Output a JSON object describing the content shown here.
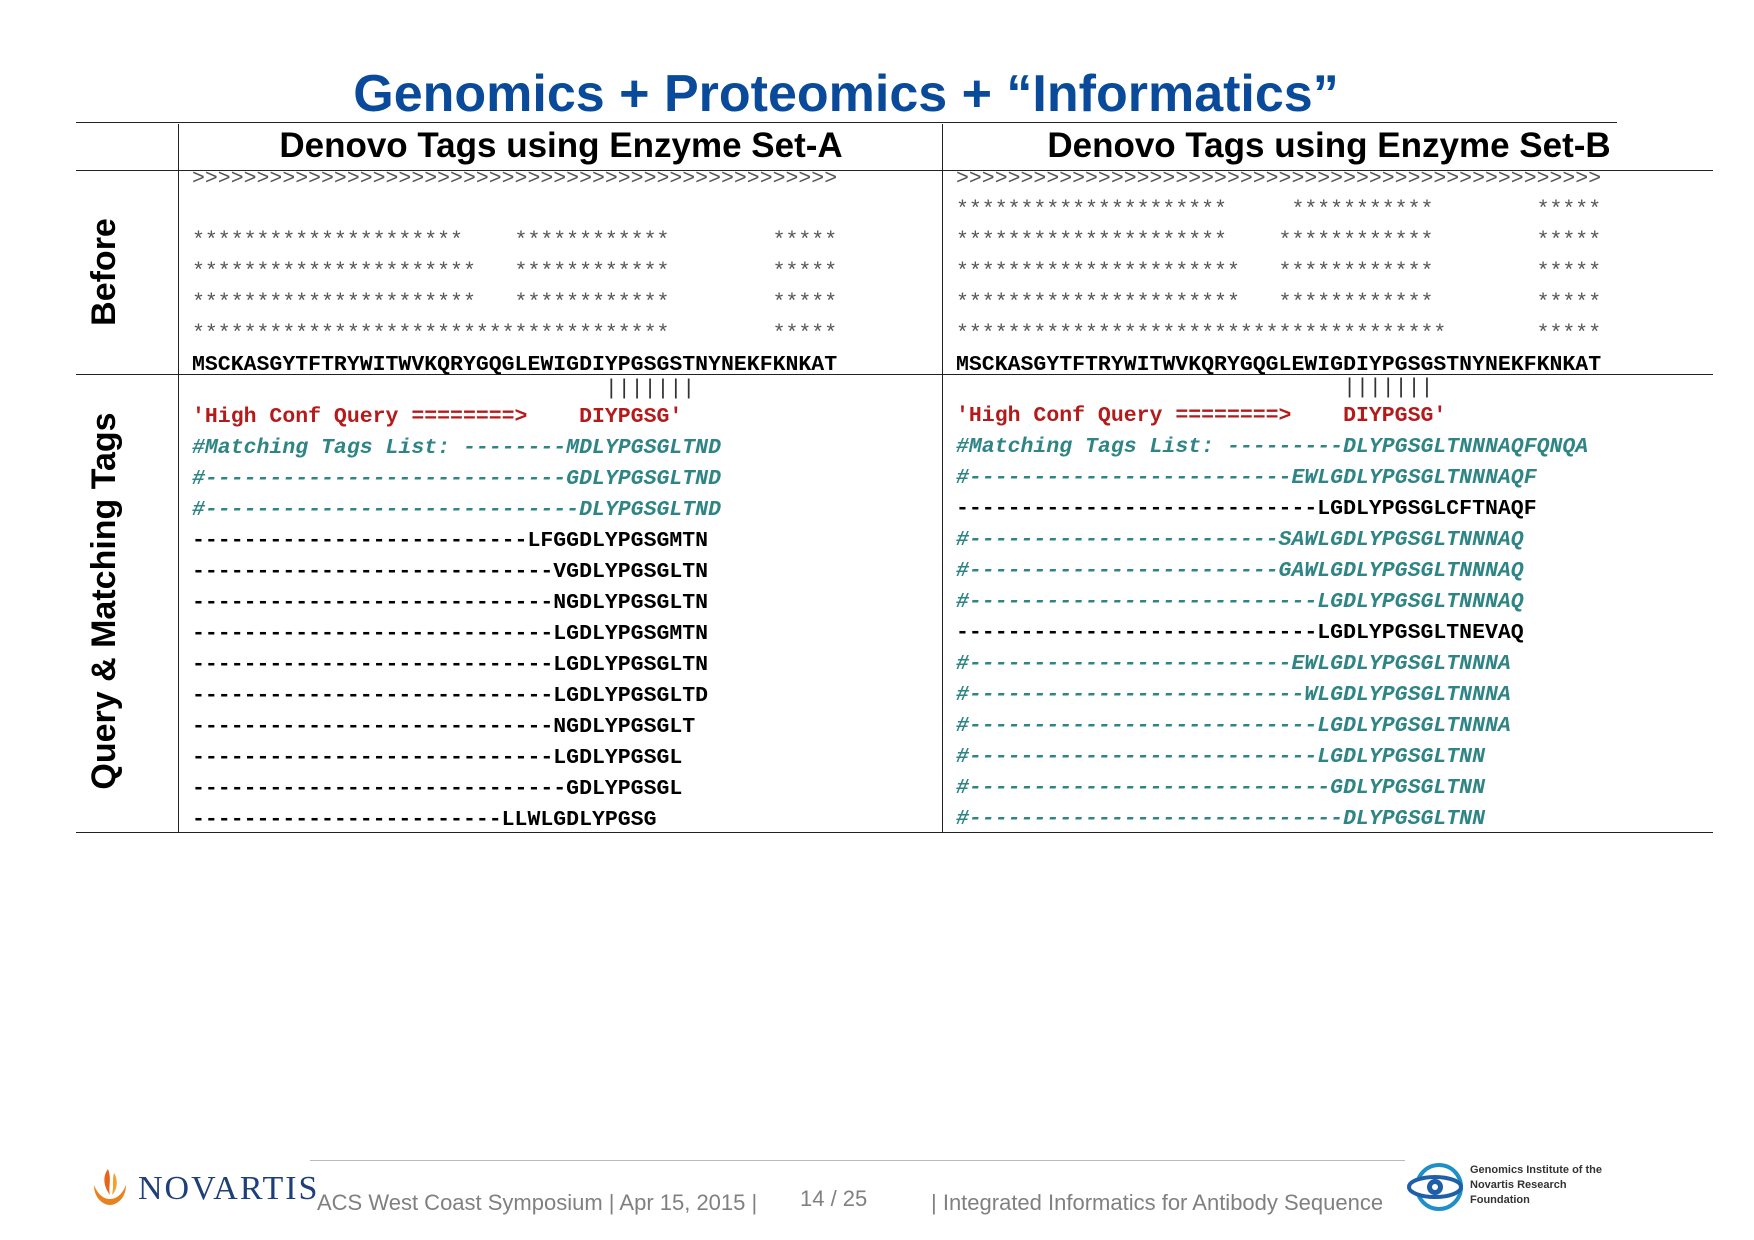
{
  "title": "Genomics + Proteomics + “Informatics”",
  "columns": {
    "a_header": "Denovo Tags using Enzyme Set-A",
    "b_header": "Denovo Tags using Enzyme Set-B"
  },
  "row_labels": {
    "before": "Before",
    "query": "Query & Matching Tags"
  },
  "set_a": {
    "before": [
      {
        "text": ">>>>>>>>>>>>>>>>>>>>>>>>>>>>>>>>>>>>>>>>>>>>>>>>>>",
        "style": "gray"
      },
      {
        "text": "",
        "style": "gray"
      },
      {
        "text": "*********************    ************        *****",
        "style": "gray"
      },
      {
        "text": "**********************   ************        *****",
        "style": "gray"
      },
      {
        "text": "**********************   ************        *****",
        "style": "gray"
      },
      {
        "text": "*************************************        *****",
        "style": "gray"
      },
      {
        "text": "MSCKASGYTFTRYWITWVKQRYGQGLEWIGDIYPGSGSTNYNEKFKNKAT",
        "style": "black"
      }
    ],
    "bars": "                                |||||||",
    "query": [
      {
        "text": "'High Conf Query ========>    DIYPGSG'",
        "style": "red"
      },
      {
        "text": "#Matching Tags List: --------MDLYPGSGLTND",
        "style": "teal"
      },
      {
        "text": "#----------------------------GDLYPGSGLTND",
        "style": "teal"
      },
      {
        "text": "#-----------------------------DLYPGSGLTND",
        "style": "teal"
      },
      {
        "text": "--------------------------LFGGDLYPGSGMTN",
        "style": "black"
      },
      {
        "text": "----------------------------VGDLYPGSGLTN",
        "style": "black"
      },
      {
        "text": "----------------------------NGDLYPGSGLTN",
        "style": "black"
      },
      {
        "text": "----------------------------LGDLYPGSGMTN",
        "style": "black"
      },
      {
        "text": "----------------------------LGDLYPGSGLTN",
        "style": "black"
      },
      {
        "text": "----------------------------LGDLYPGSGLTD",
        "style": "black"
      },
      {
        "text": "----------------------------NGDLYPGSGLT",
        "style": "black"
      },
      {
        "text": "----------------------------LGDLYPGSGL",
        "style": "black"
      },
      {
        "text": "-----------------------------GDLYPGSGL",
        "style": "black"
      },
      {
        "text": "------------------------LLWLGDLYPGSG",
        "style": "black"
      }
    ]
  },
  "set_b": {
    "before": [
      {
        "text": ">>>>>>>>>>>>>>>>>>>>>>>>>>>>>>>>>>>>>>>>>>>>>>>>>>",
        "style": "gray"
      },
      {
        "text": "*********************     ***********        *****",
        "style": "gray"
      },
      {
        "text": "*********************    ************        *****",
        "style": "gray"
      },
      {
        "text": "**********************   ************        *****",
        "style": "gray"
      },
      {
        "text": "**********************   ************        *****",
        "style": "gray"
      },
      {
        "text": "**************************************       *****",
        "style": "gray"
      },
      {
        "text": "MSCKASGYTFTRYWITWVKQRYGQGLEWIGDIYPGSGSTNYNEKFKNKAT",
        "style": "black"
      }
    ],
    "bars": "                              |||||||",
    "query": [
      {
        "text": "'High Conf Query ========>    DIYPGSG'",
        "style": "red"
      },
      {
        "text": "#Matching Tags List: ---------DLYPGSGLTNNNAQFQNQA",
        "style": "teal"
      },
      {
        "text": "#-------------------------EWLGDLYPGSGLTNNNAQF",
        "style": "teal"
      },
      {
        "text": "----------------------------LGDLYPGSGLCFTNAQF",
        "style": "black"
      },
      {
        "text": "#------------------------SAWLGDLYPGSGLTNNNAQ",
        "style": "teal"
      },
      {
        "text": "#------------------------GAWLGDLYPGSGLTNNNAQ",
        "style": "teal"
      },
      {
        "text": "#---------------------------LGDLYPGSGLTNNNAQ",
        "style": "teal"
      },
      {
        "text": "----------------------------LGDLYPGSGLTNEVAQ",
        "style": "black"
      },
      {
        "text": "#-------------------------EWLGDLYPGSGLTNNNA",
        "style": "teal"
      },
      {
        "text": "#--------------------------WLGDLYPGSGLTNNNA",
        "style": "teal"
      },
      {
        "text": "#---------------------------LGDLYPGSGLTNNNA",
        "style": "teal"
      },
      {
        "text": "#---------------------------LGDLYPGSGLTNN",
        "style": "teal"
      },
      {
        "text": "#----------------------------GDLYPGSGLTNN",
        "style": "teal"
      },
      {
        "text": "#-----------------------------DLYPGSGLTNN",
        "style": "teal"
      }
    ]
  },
  "footer": {
    "company": "NOVARTIS",
    "event": "ACS West Coast Symposium | Apr 15, 2015 |",
    "page": "14 / 25",
    "subject": "| Integrated Informatics for Antibody Sequence",
    "gnf_lines": [
      "Genomics Institute of the",
      "Novartis Research",
      "Foundation"
    ]
  },
  "colors": {
    "title": "#0a4a9a",
    "query_red": "#b51a1a",
    "match_teal": "#2f8585",
    "sequence_gray": "#555555"
  }
}
